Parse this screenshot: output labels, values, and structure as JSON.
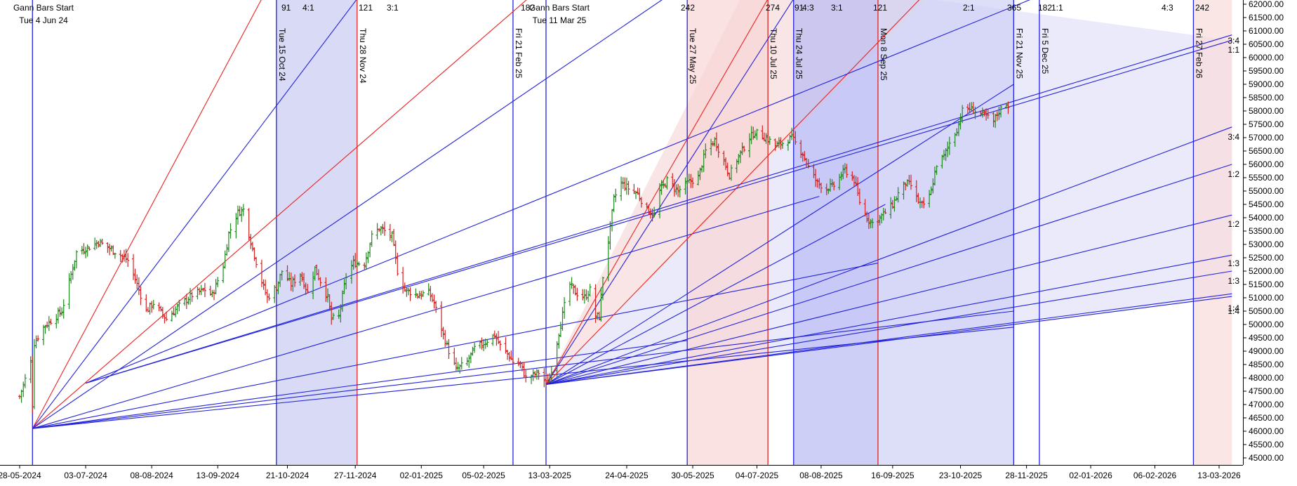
{
  "chart_data": {
    "type": "candlestick",
    "title": "",
    "xlabel": "",
    "ylabel": "",
    "ylim": [
      45000,
      62000
    ],
    "y_tick_step": 500,
    "y_tick_decimals": 2,
    "x_ticks": [
      {
        "date": "2024-05-28",
        "label": "28-05-2024"
      },
      {
        "date": "2024-07-03",
        "label": "03-07-2024"
      },
      {
        "date": "2024-08-08",
        "label": "08-08-2024"
      },
      {
        "date": "2024-09-13",
        "label": "13-09-2024"
      },
      {
        "date": "2024-10-21",
        "label": "21-10-2024"
      },
      {
        "date": "2024-11-27",
        "label": "27-11-2024"
      },
      {
        "date": "2025-01-02",
        "label": "02-01-2025"
      },
      {
        "date": "2025-02-05",
        "label": "05-02-2025"
      },
      {
        "date": "2025-03-13",
        "label": "13-03-2025"
      },
      {
        "date": "2025-04-24",
        "label": "24-04-2025"
      },
      {
        "date": "2025-05-30",
        "label": "30-05-2025"
      },
      {
        "date": "2025-07-04",
        "label": "04-07-2025"
      },
      {
        "date": "2025-08-08",
        "label": "08-08-2025"
      },
      {
        "date": "2025-09-16",
        "label": "16-09-2025"
      },
      {
        "date": "2025-10-23",
        "label": "23-10-2025"
      },
      {
        "date": "2025-11-28",
        "label": "28-11-2025"
      },
      {
        "date": "2026-01-02",
        "label": "02-01-2026"
      },
      {
        "date": "2026-02-06",
        "label": "06-02-2026"
      },
      {
        "date": "2026-03-13",
        "label": "13-03-2026"
      }
    ],
    "price_anchors": [
      [
        "2024-05-28",
        47300
      ],
      [
        "2024-06-03",
        48600
      ],
      [
        "2024-06-04",
        47000
      ],
      [
        "2024-06-05",
        49300
      ],
      [
        "2024-06-10",
        49900
      ],
      [
        "2024-06-20",
        50500
      ],
      [
        "2024-06-28",
        52700
      ],
      [
        "2024-07-05",
        52900
      ],
      [
        "2024-07-10",
        53100
      ],
      [
        "2024-07-22",
        52600
      ],
      [
        "2024-07-26",
        52400
      ],
      [
        "2024-07-30",
        51700
      ],
      [
        "2024-08-05",
        50500
      ],
      [
        "2024-08-09",
        50800
      ],
      [
        "2024-08-16",
        50200
      ],
      [
        "2024-08-23",
        50700
      ],
      [
        "2024-08-30",
        51100
      ],
      [
        "2024-09-06",
        51300
      ],
      [
        "2024-09-10",
        51100
      ],
      [
        "2024-09-16",
        52200
      ],
      [
        "2024-09-19",
        53400
      ],
      [
        "2024-09-24",
        54200
      ],
      [
        "2024-09-27",
        54300
      ],
      [
        "2024-10-01",
        53100
      ],
      [
        "2024-10-07",
        51600
      ],
      [
        "2024-10-10",
        51000
      ],
      [
        "2024-10-15",
        51400
      ],
      [
        "2024-10-18",
        52000
      ],
      [
        "2024-10-23",
        51500
      ],
      [
        "2024-10-28",
        51900
      ],
      [
        "2024-11-01",
        51200
      ],
      [
        "2024-11-05",
        52100
      ],
      [
        "2024-11-12",
        51000
      ],
      [
        "2024-11-14",
        50200
      ],
      [
        "2024-11-18",
        50300
      ],
      [
        "2024-11-22",
        51800
      ],
      [
        "2024-11-26",
        52300
      ],
      [
        "2024-12-02",
        52300
      ],
      [
        "2024-12-06",
        53300
      ],
      [
        "2024-12-10",
        53600
      ],
      [
        "2024-12-13",
        53500
      ],
      [
        "2024-12-17",
        53300
      ],
      [
        "2024-12-20",
        52000
      ],
      [
        "2024-12-24",
        51300
      ],
      [
        "2024-12-31",
        51100
      ],
      [
        "2025-01-06",
        51200
      ],
      [
        "2025-01-09",
        50800
      ],
      [
        "2025-01-14",
        49600
      ],
      [
        "2025-01-17",
        49000
      ],
      [
        "2025-01-21",
        48300
      ],
      [
        "2025-01-27",
        48600
      ],
      [
        "2025-01-31",
        49100
      ],
      [
        "2025-02-05",
        49300
      ],
      [
        "2025-02-07",
        49400
      ],
      [
        "2025-02-11",
        49600
      ],
      [
        "2025-02-14",
        49200
      ],
      [
        "2025-02-18",
        48900
      ],
      [
        "2025-02-21",
        48600
      ],
      [
        "2025-02-25",
        48500
      ],
      [
        "2025-02-28",
        48000
      ],
      [
        "2025-03-04",
        48100
      ],
      [
        "2025-03-07",
        48200
      ],
      [
        "2025-03-11",
        47800
      ],
      [
        "2025-03-13",
        48000
      ],
      [
        "2025-03-18",
        49700
      ],
      [
        "2025-03-21",
        50700
      ],
      [
        "2025-03-24",
        51500
      ],
      [
        "2025-03-27",
        51200
      ],
      [
        "2025-04-01",
        51000
      ],
      [
        "2025-04-04",
        51300
      ],
      [
        "2025-04-07",
        50300
      ],
      [
        "2025-04-09",
        50300
      ],
      [
        "2025-04-11",
        51800
      ],
      [
        "2025-04-15",
        53600
      ],
      [
        "2025-04-17",
        54700
      ],
      [
        "2025-04-21",
        55300
      ],
      [
        "2025-04-25",
        55100
      ],
      [
        "2025-04-30",
        54900
      ],
      [
        "2025-05-05",
        54300
      ],
      [
        "2025-05-09",
        54100
      ],
      [
        "2025-05-12",
        55000
      ],
      [
        "2025-05-16",
        55400
      ],
      [
        "2025-05-22",
        55000
      ],
      [
        "2025-05-27",
        55300
      ],
      [
        "2025-06-02",
        55500
      ],
      [
        "2025-06-06",
        56500
      ],
      [
        "2025-06-11",
        56900
      ],
      [
        "2025-06-16",
        56100
      ],
      [
        "2025-06-19",
        55600
      ],
      [
        "2025-06-24",
        56300
      ],
      [
        "2025-06-30",
        57000
      ],
      [
        "2025-07-03",
        57200
      ],
      [
        "2025-07-09",
        57000
      ],
      [
        "2025-07-14",
        56700
      ],
      [
        "2025-07-18",
        56800
      ],
      [
        "2025-07-23",
        57000
      ],
      [
        "2025-07-25",
        56800
      ],
      [
        "2025-07-29",
        56400
      ],
      [
        "2025-08-01",
        55900
      ],
      [
        "2025-08-06",
        55300
      ],
      [
        "2025-08-11",
        55100
      ],
      [
        "2025-08-15",
        55200
      ],
      [
        "2025-08-21",
        55800
      ],
      [
        "2025-08-26",
        55400
      ],
      [
        "2025-08-29",
        54600
      ],
      [
        "2025-09-02",
        54000
      ],
      [
        "2025-09-05",
        53800
      ],
      [
        "2025-09-09",
        54000
      ],
      [
        "2025-09-12",
        54200
      ],
      [
        "2025-09-16",
        54500
      ],
      [
        "2025-09-19",
        54900
      ],
      [
        "2025-09-23",
        55300
      ],
      [
        "2025-09-26",
        55200
      ],
      [
        "2025-09-30",
        54600
      ],
      [
        "2025-10-03",
        54400
      ],
      [
        "2025-10-07",
        55000
      ],
      [
        "2025-10-10",
        56000
      ],
      [
        "2025-10-14",
        56300
      ],
      [
        "2025-10-17",
        56800
      ],
      [
        "2025-10-21",
        57300
      ],
      [
        "2025-10-24",
        58000
      ],
      [
        "2025-10-28",
        58100
      ],
      [
        "2025-11-03",
        57900
      ],
      [
        "2025-11-06",
        57800
      ],
      [
        "2025-11-10",
        57600
      ],
      [
        "2025-11-13",
        58000
      ],
      [
        "2025-11-17",
        58300
      ],
      [
        "2025-11-18",
        58200
      ]
    ],
    "shaded_zones": [
      {
        "from": "2024-10-15",
        "to": "2024-11-28",
        "color": "#c9ccf2"
      },
      {
        "from": "2025-05-27",
        "to": "2025-07-10",
        "color": "#f9d6d6"
      },
      {
        "from": "2025-07-24",
        "to": "2025-09-08",
        "color": "#b9bbf3"
      },
      {
        "from": "2025-09-08",
        "to": "2025-11-21",
        "color": "#cfd0f5"
      },
      {
        "from": "2026-02-27",
        "to": "2026-03-20",
        "color": "#f9dcdc"
      }
    ],
    "zone_fans": [
      {
        "origin": [
          "2025-03-11",
          47750
        ],
        "color": "#f7dcdc",
        "fill": [
          [
            "2025-06-25",
            62200
          ],
          [
            "2025-10-05",
            62200
          ]
        ]
      },
      {
        "origin": [
          "2025-03-11",
          47750
        ],
        "color": "#e3e3f8",
        "fill": [
          [
            "2025-10-05",
            62200
          ],
          [
            "2026-03-20",
            60650
          ],
          [
            "2026-03-20",
            51050
          ]
        ]
      }
    ],
    "vertical_lines": [
      {
        "date": "2024-06-04",
        "color": "#2222dd",
        "label": ""
      },
      {
        "date": "2024-10-15",
        "color": "#2222dd",
        "label": "Tue 15 Oct 24"
      },
      {
        "date": "2024-11-28",
        "color": "#dd2222",
        "label": "Thu 28 Nov 24"
      },
      {
        "date": "2025-02-21",
        "color": "#2222dd",
        "label": "Fri 21 Feb 25"
      },
      {
        "date": "2025-03-11",
        "color": "#2222dd",
        "label": ""
      },
      {
        "date": "2025-05-27",
        "color": "#2222dd",
        "label": "Tue 27 May 25"
      },
      {
        "date": "2025-07-10",
        "color": "#dd2222",
        "label": "Thu 10 Jul 25"
      },
      {
        "date": "2025-07-24",
        "color": "#2222dd",
        "label": "Thu 24 Jul 25"
      },
      {
        "date": "2025-09-08",
        "color": "#dd2222",
        "label": "Mon 8 Sep 25"
      },
      {
        "date": "2025-11-21",
        "color": "#2222dd",
        "label": "Fri 21 Nov 25"
      },
      {
        "date": "2025-12-05",
        "color": "#2222dd",
        "label": "Fri 5 Dec 25"
      },
      {
        "date": "2026-02-27",
        "color": "#2222dd",
        "label": "Fri 27 Feb 26"
      }
    ],
    "gann_fans": [
      {
        "origin": [
          "2024-06-04",
          46100
        ],
        "rays": [
          {
            "to": [
              "2024-10-07",
              62200
            ],
            "color": "#ee2222"
          },
          {
            "to": [
              "2024-11-28",
              62200
            ],
            "color": "#2222dd"
          },
          {
            "to": [
              "2025-03-01",
              62200
            ],
            "color": "#ee2222"
          },
          {
            "to": [
              "2025-05-14",
              62200
            ],
            "color": "#2222dd"
          },
          {
            "to": [
              "2025-08-07",
              54800
            ],
            "color": "#2222dd"
          },
          {
            "to": [
              "2025-09-08",
              52300
            ],
            "color": "#2222dd"
          },
          {
            "to": [
              "2025-05-27",
              49400
            ],
            "color": "#2222dd"
          },
          {
            "to": [
              "2025-11-21",
              50500
            ],
            "color": "#2222dd"
          },
          {
            "to": [
              "2025-11-21",
              49900
            ],
            "color": "#2222dd"
          }
        ]
      },
      {
        "origin": [
          "2025-03-11",
          47750
        ],
        "rays": [
          {
            "to": [
              "2025-07-10",
              62200
            ],
            "color": "#ee2222"
          },
          {
            "to": [
              "2025-10-01",
              62200
            ],
            "color": "#ee2222"
          },
          {
            "to": [
              "2025-07-24",
              62200
            ],
            "color": "#2222dd"
          },
          {
            "to": [
              "2025-11-21",
              59000
            ],
            "color": "#2222dd"
          },
          {
            "to": [
              "2025-09-12",
              54500
            ],
            "color": "#2222dd"
          },
          {
            "to": [
              "2026-03-20",
              57400
            ],
            "color": "#2222dd"
          },
          {
            "to": [
              "2026-03-20",
              56000
            ],
            "color": "#2222dd"
          },
          {
            "to": [
              "2026-03-20",
              54100
            ],
            "color": "#2222dd"
          },
          {
            "to": [
              "2026-03-20",
              52600
            ],
            "color": "#2222dd"
          },
          {
            "to": [
              "2026-03-20",
              52000
            ],
            "color": "#2222dd"
          },
          {
            "to": [
              "2026-03-20",
              51150
            ],
            "color": "#2222dd"
          },
          {
            "to": [
              "2026-03-20",
              51050
            ],
            "color": "#2222dd"
          }
        ]
      },
      {
        "origin": [
          "2024-07-03",
          47800
        ],
        "rays": [
          {
            "to": [
              "2025-12-01",
              62200
            ],
            "color": "#2222dd"
          },
          {
            "to": [
              "2026-03-20",
              60850
            ],
            "color": "#2222dd"
          },
          {
            "to": [
              "2026-03-20",
              60650
            ],
            "color": "#2222dd"
          }
        ]
      }
    ],
    "start_labels": [
      {
        "title": "Gann Bars Start",
        "subtitle": "Tue 4 Jun 24"
      },
      {
        "title": "Gann Bars Start",
        "subtitle": "Tue 11 Mar 25"
      }
    ],
    "top_labels": [
      "91",
      "4:1",
      "121",
      "3:1",
      "182",
      "242",
      "274",
      "91",
      "4:3",
      "3:1",
      "121",
      "2:1",
      "365",
      "182",
      "1:1",
      "4:3",
      "242"
    ],
    "right_labels": [
      "3:4",
      "1:1",
      "3:4",
      "1:2",
      "1:2",
      "1:3",
      "1:3",
      "1:4",
      "1:4"
    ]
  }
}
